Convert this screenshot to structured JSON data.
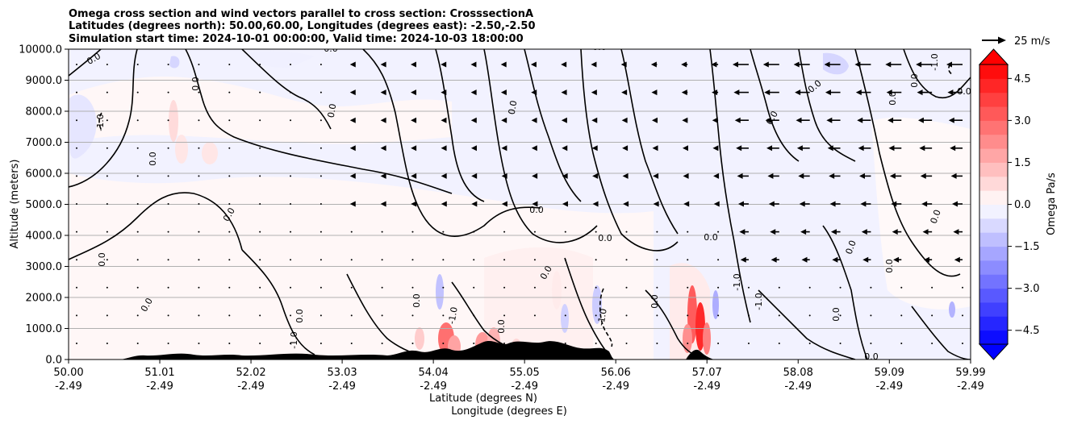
{
  "chart_data": {
    "type": "heatmap",
    "title_lines": [
      "Omega cross section and wind vectors parallel to cross section: CrosssectionA",
      "Latitudes (degrees north): 50.00,60.00, Longitudes (degrees east): -2.50,-2.50",
      "Simulation start time: 2024-10-01 00:00:00, Valid time: 2024-10-03 18:00:00"
    ],
    "xlabel_lines": [
      "Latitude (degrees N)",
      "Longitude (degrees E)"
    ],
    "ylabel": "Altitude (meters)",
    "xlim": [
      50.0,
      59.99
    ],
    "ylim": [
      0,
      10000
    ],
    "x_ticks": [
      {
        "lat": "50.00",
        "lon": "-2.49",
        "v": 50.0
      },
      {
        "lat": "51.01",
        "lon": "-2.49",
        "v": 51.01
      },
      {
        "lat": "52.02",
        "lon": "-2.49",
        "v": 52.02
      },
      {
        "lat": "53.03",
        "lon": "-2.49",
        "v": 53.03
      },
      {
        "lat": "54.04",
        "lon": "-2.49",
        "v": 54.04
      },
      {
        "lat": "55.05",
        "lon": "-2.49",
        "v": 55.05
      },
      {
        "lat": "56.06",
        "lon": "-2.49",
        "v": 56.06
      },
      {
        "lat": "57.07",
        "lon": "-2.49",
        "v": 57.07
      },
      {
        "lat": "58.08",
        "lon": "-2.49",
        "v": 58.08
      },
      {
        "lat": "59.09",
        "lon": "-2.49",
        "v": 59.09
      },
      {
        "lat": "59.99",
        "lon": "-2.49",
        "v": 59.99
      }
    ],
    "y_ticks": [
      {
        "label": "0.0",
        "v": 0
      },
      {
        "label": "1000.0",
        "v": 1000
      },
      {
        "label": "2000.0",
        "v": 2000
      },
      {
        "label": "3000.0",
        "v": 3000
      },
      {
        "label": "4000.0",
        "v": 4000
      },
      {
        "label": "5000.0",
        "v": 5000
      },
      {
        "label": "6000.0",
        "v": 6000
      },
      {
        "label": "7000.0",
        "v": 7000
      },
      {
        "label": "8000.0",
        "v": 8000
      },
      {
        "label": "9000.0",
        "v": 9000
      },
      {
        "label": "10000.0",
        "v": 10000
      }
    ],
    "grid": "horizontal",
    "colorbar": {
      "label": "Omega Pa/s",
      "range": [
        -5.0,
        5.0
      ],
      "extend": "both",
      "ticks": [
        {
          "label": "4.5",
          "v": 4.5
        },
        {
          "label": "3.0",
          "v": 3.0
        },
        {
          "label": "1.5",
          "v": 1.5
        },
        {
          "label": "0.0",
          "v": 0.0
        },
        {
          "label": "−1.5",
          "v": -1.5
        },
        {
          "label": "−3.0",
          "v": -3.0
        },
        {
          "label": "−4.5",
          "v": -4.5
        }
      ],
      "colors": {
        "negative": "#0000ff",
        "positive": "#ff0000",
        "neutral": "#ffffff"
      }
    },
    "quiver_key": {
      "label": "25 m/s"
    },
    "contour_labels": [
      "0.0",
      "-1.0"
    ],
    "terrain_color": "#000000",
    "vector_color": "#000000"
  }
}
